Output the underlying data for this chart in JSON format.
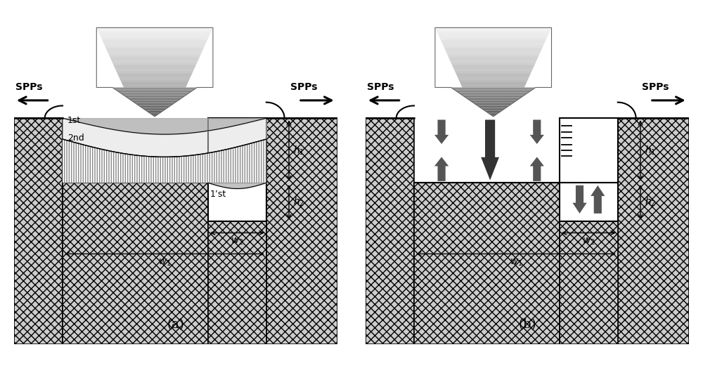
{
  "bg_color": "#ffffff",
  "hatch_face": "#cccccc",
  "groove_fill": "#ffffff",
  "panel_a_label": "(a)",
  "panel_b_label": "(b)",
  "SPPs_label": "SPPs",
  "label_1st": "1st",
  "label_2nd": "2nd",
  "label_1st_prime": "1’st",
  "arrow_light_color": "#aaaaaa",
  "arrow_dark_color": "#555555",
  "mode_arrow_color": "#555555",
  "mode_arrow_dark": "#333333"
}
